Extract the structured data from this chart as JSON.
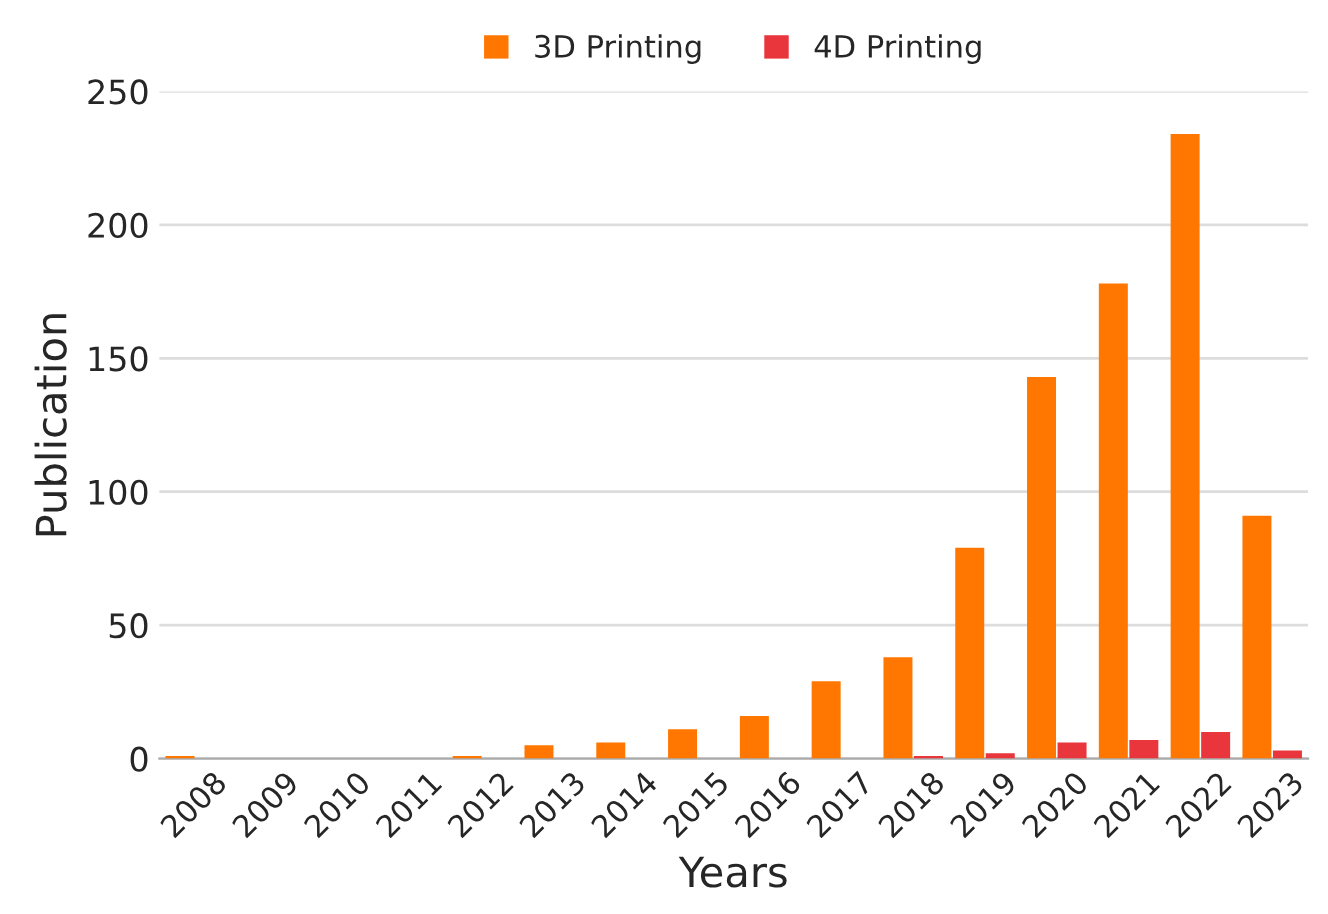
{
  "chart_data": {
    "type": "bar",
    "xlabel": "Years",
    "ylabel": "Publication",
    "categories": [
      "2008",
      "2009",
      "2010",
      "2011",
      "2012",
      "2013",
      "2014",
      "2015",
      "2016",
      "2017",
      "2018",
      "2019",
      "2020",
      "2021",
      "2022",
      "2023"
    ],
    "series": [
      {
        "name": "3D Printing",
        "color": "#ff7700",
        "values": [
          1,
          0,
          0,
          0,
          1,
          5,
          6,
          11,
          16,
          29,
          38,
          79,
          143,
          178,
          234,
          91
        ]
      },
      {
        "name": "4D Printing",
        "color": "#e8363c",
        "values": [
          0,
          0,
          0,
          0,
          0,
          0,
          0,
          0,
          0,
          0,
          1,
          2,
          6,
          7,
          10,
          3
        ]
      }
    ],
    "ylim": [
      0,
      250
    ],
    "yticks": [
      0,
      50,
      100,
      150,
      200,
      250
    ],
    "grid": "y",
    "legend": "top"
  }
}
